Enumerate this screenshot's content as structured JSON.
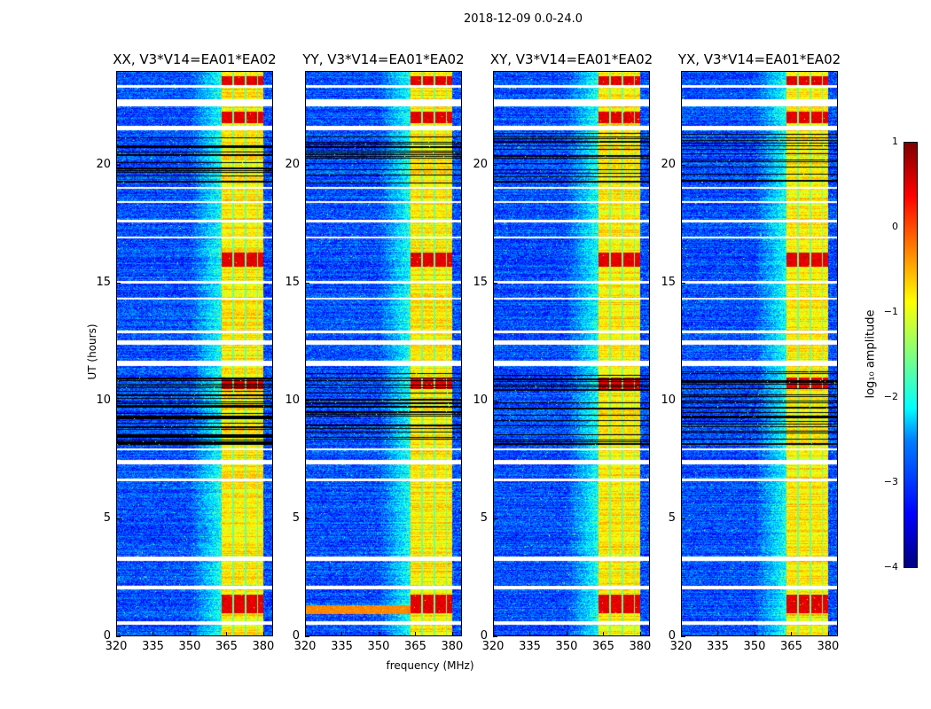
{
  "chart_data": {
    "type": "heatmap",
    "title": "2018-12-09 0.0-24.0",
    "xlabel": "frequency (MHz)",
    "ylabel": "UT (hours)",
    "xlim": [
      320,
      384
    ],
    "ylim": [
      0,
      24
    ],
    "xticks": [
      "320",
      "335",
      "350",
      "365",
      "380"
    ],
    "xtick_values": [
      320,
      335,
      350,
      365,
      380
    ],
    "yticks": [
      "0",
      "5",
      "10",
      "15",
      "20"
    ],
    "ytick_values": [
      0,
      5,
      10,
      15,
      20
    ],
    "panels": [
      {
        "title": "XX, V3*V14=EA01*EA02",
        "rfi_row": false
      },
      {
        "title": "YY, V3*V14=EA01*EA02",
        "rfi_row": true
      },
      {
        "title": "XY, V3*V14=EA01*EA02",
        "rfi_row": false
      },
      {
        "title": "YX, V3*V14=EA01*EA02",
        "rfi_row": false
      }
    ],
    "background_level": -3.0,
    "band_mhz": [
      363,
      380
    ],
    "band_level": -0.8,
    "band_gaps_mhz": [
      367.5,
      372.5,
      377.5
    ],
    "bright_hours": [
      [
        1.0,
        1.8
      ],
      [
        10.5,
        11.0
      ],
      [
        15.7,
        16.3
      ],
      [
        21.8,
        22.3
      ],
      [
        23.4,
        23.8
      ]
    ],
    "flagged_hours": [
      [
        0.5,
        0.65
      ],
      [
        2.0,
        2.15
      ],
      [
        3.2,
        3.4
      ],
      [
        6.6,
        6.7
      ],
      [
        7.3,
        7.5
      ],
      [
        7.9,
        8.0
      ],
      [
        11.5,
        11.7
      ],
      [
        12.4,
        12.6
      ],
      [
        12.9,
        13.0
      ],
      [
        14.3,
        14.4
      ],
      [
        15.0,
        15.1
      ],
      [
        16.9,
        17.0
      ],
      [
        17.6,
        17.7
      ],
      [
        18.4,
        18.5
      ],
      [
        19.0,
        19.1
      ],
      [
        21.5,
        21.7
      ],
      [
        22.5,
        22.8
      ],
      [
        23.3,
        23.4
      ]
    ],
    "dark_hours": [
      [
        8.1,
        11.3
      ],
      [
        19.2,
        21.4
      ]
    ],
    "colorbar": {
      "label": "log₁₀ amplitude",
      "ticks": [
        "1",
        "0",
        "−1",
        "−2",
        "−3",
        "−4"
      ],
      "range": [
        -4,
        1
      ],
      "colormap": "jet"
    }
  }
}
